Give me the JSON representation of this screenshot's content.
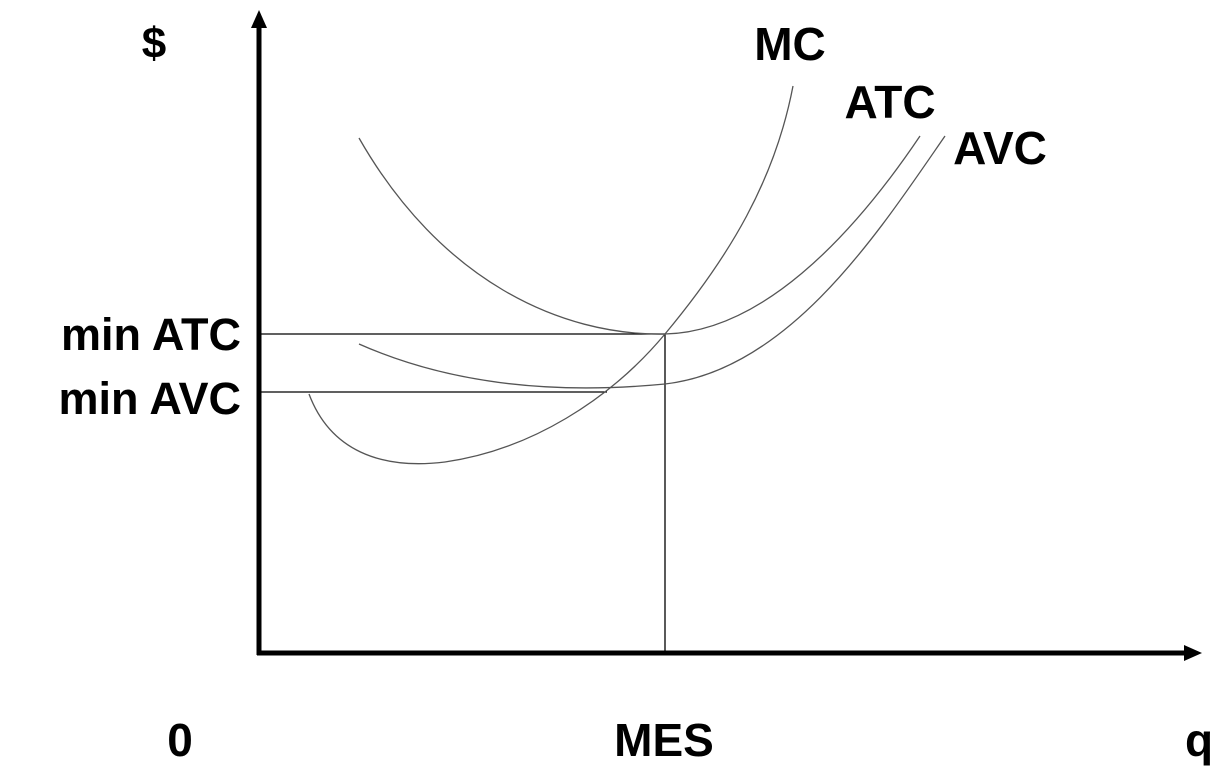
{
  "labels": {
    "y_axis": "$",
    "x_axis": "q",
    "origin": "0",
    "mes": "MES",
    "min_atc": "min ATC",
    "min_avc": "min AVC"
  },
  "curves": {
    "mc": "MC",
    "atc": "ATC",
    "avc": "AVC"
  },
  "colors": {
    "axis": "#000000",
    "curve": "#555555",
    "text": "#000000"
  }
}
